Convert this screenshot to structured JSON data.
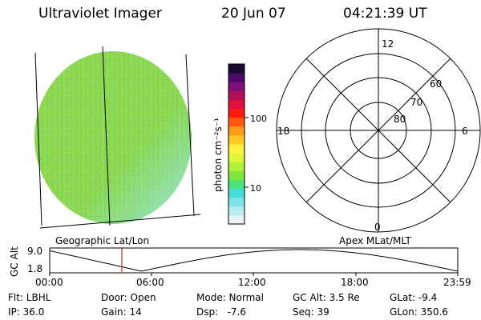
{
  "header": {
    "title": "Ultraviolet Imager",
    "date": "20 Jun 07",
    "time": "04:21:39 UT"
  },
  "colorbar": {
    "unit_label": "photon cm⁻²s⁻¹",
    "ticks": [
      "100",
      "10"
    ],
    "colors": [
      "#e8f4f6",
      "#b6ecef",
      "#7fe3ea",
      "#47dcdc",
      "#4ee07a",
      "#7fe83a",
      "#b0f23a",
      "#e0f73c",
      "#fff23c",
      "#ffc823",
      "#ff9a1a",
      "#ff5a10",
      "#ff1a10",
      "#e0103c",
      "#b0105a",
      "#800e7a",
      "#4a0a6a",
      "#1a0a30"
    ]
  },
  "image_panel": {
    "caption": "Geographic Lat/Lon",
    "fill_color": "#8cd850",
    "speckle_color": "#9de06a"
  },
  "polar_panel": {
    "caption": "Apex MLat/MLT",
    "mlt_labels": {
      "top": "12",
      "bottom": "0",
      "left": "18",
      "right": "6"
    },
    "lat_labels": [
      "60",
      "70",
      "80"
    ]
  },
  "altitude_plot": {
    "ylabel": "GC Alt",
    "y_ticks": [
      "9.0",
      "1.8"
    ],
    "x_ticks": [
      "00:00",
      "06:00",
      "12:00",
      "18:00",
      "23:59"
    ],
    "marker_color": "#cc0000"
  },
  "footer": {
    "row1": [
      "Flt: LBHL",
      "Door: Open",
      "Mode: Normal",
      "GC Alt: 3.5 Re",
      "GLat: -9.4"
    ],
    "row2": [
      "IP: 36.0",
      "Gain: 14",
      "Dsp:   -7.6",
      "Seq: 39",
      "GLon: 350.6"
    ]
  }
}
